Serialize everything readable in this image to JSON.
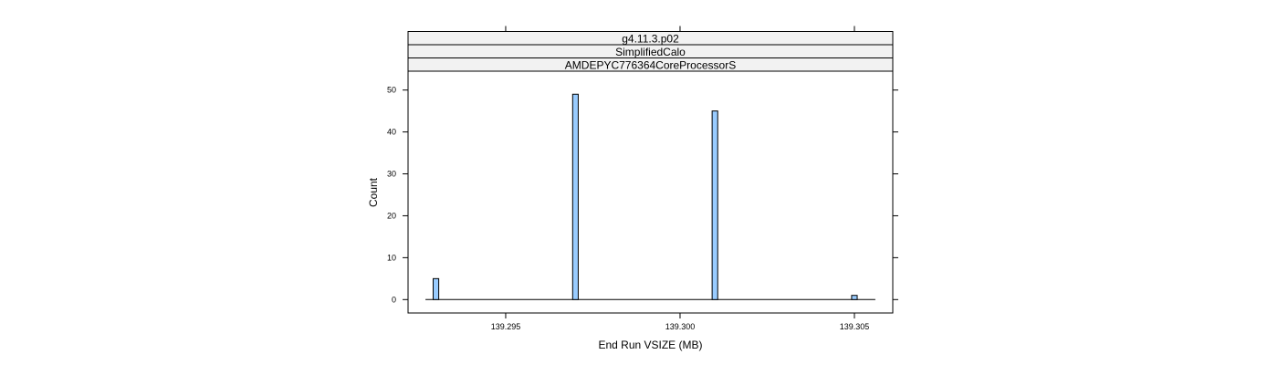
{
  "chart_data": {
    "type": "bar",
    "strips": [
      "g4.11.3.p02",
      "SimplifiedCalo",
      "AMDEPYC776364CoreProcessorS"
    ],
    "xlabel": "End Run VSIZE (MB)",
    "ylabel": "Count",
    "xlim": [
      139.2922,
      139.3061
    ],
    "ylim": [
      -3.2,
      54.5
    ],
    "x_ticks": [
      139.295,
      139.3,
      139.305
    ],
    "x_tick_labels": [
      "139.295",
      "139.300",
      "139.305"
    ],
    "y_ticks": [
      0,
      10,
      20,
      30,
      40,
      50
    ],
    "y_tick_labels": [
      "0",
      "10",
      "20",
      "30",
      "40",
      "50"
    ],
    "bin_width": 0.00016,
    "baseline_range": [
      139.2927,
      139.3056
    ],
    "bars": [
      {
        "x": 139.293,
        "count": 5
      },
      {
        "x": 139.297,
        "count": 49
      },
      {
        "x": 139.301,
        "count": 45
      },
      {
        "x": 139.305,
        "count": 1
      }
    ],
    "bar_fill": "#99ccff",
    "bar_stroke": "#000000",
    "strip_fill": "#f2f2f2",
    "grid": false
  }
}
